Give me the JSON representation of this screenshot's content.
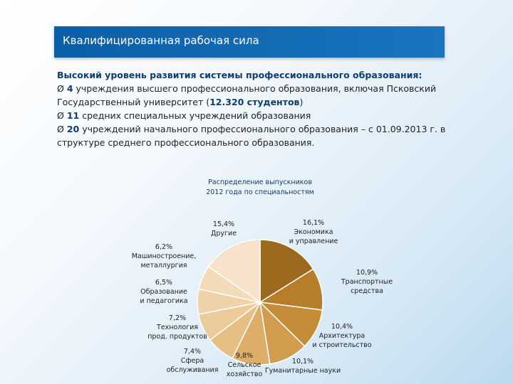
{
  "header": {
    "title": "Квалифицированная рабочая сила"
  },
  "text": {
    "heading": "Высокий уровень развития системы профессионального образования:",
    "bullet_marker": "Ø",
    "b1": {
      "num": "4",
      "text": " учреждения высшего профессионального образования, включая Псковский Государственный университет (",
      "highlight": "12.320 студентов",
      "tail": ")"
    },
    "b2": {
      "num": "11",
      "text": " средних специальных учреждений образования"
    },
    "b3": {
      "num": "20",
      "text": " учреждений начального профессионального образования – с 01.09.2013 г. в структуре среднего профессионального образования."
    }
  },
  "chart_data": {
    "type": "pie",
    "title": "Распределение выпускников 2012 года по специальностям",
    "title_lines": [
      "Распределение выпускников",
      "2012 года по специальностям"
    ],
    "slices": [
      {
        "label_lines": [
          "Экономика",
          "и управление"
        ],
        "value_text": "16,1%",
        "value": 16.1,
        "color": "#9c6a1f"
      },
      {
        "label_lines": [
          "Транспортные",
          "средства"
        ],
        "value_text": "10,9%",
        "value": 10.9,
        "color": "#b67d2a"
      },
      {
        "label_lines": [
          "Архитектура",
          "и строительство"
        ],
        "value_text": "10,4%",
        "value": 10.4,
        "color": "#c58d38"
      },
      {
        "label_lines": [
          "Гуманитарные науки"
        ],
        "value_text": "10,1%",
        "value": 10.1,
        "color": "#d09d4e"
      },
      {
        "label_lines": [
          "Сельское",
          "хозяйство"
        ],
        "value_text": "9,8%",
        "value": 9.8,
        "color": "#dcae68"
      },
      {
        "label_lines": [
          "Сфера",
          "обслуживания"
        ],
        "value_text": "7,4%",
        "value": 7.4,
        "color": "#e6bf85"
      },
      {
        "label_lines": [
          "Технология",
          "прод. продуктов"
        ],
        "value_text": "7,2%",
        "value": 7.2,
        "color": "#eccb9a"
      },
      {
        "label_lines": [
          "Образование",
          "и педагогика"
        ],
        "value_text": "6,5%",
        "value": 6.5,
        "color": "#f0d2a8"
      },
      {
        "label_lines": [
          "Машиностроение,",
          "металлургия"
        ],
        "value_text": "6,2%",
        "value": 6.2,
        "color": "#f3dab8"
      },
      {
        "label_lines": [
          "Другие"
        ],
        "value_text": "15,4%",
        "value": 15.4,
        "color": "#f7e3cc"
      }
    ]
  }
}
